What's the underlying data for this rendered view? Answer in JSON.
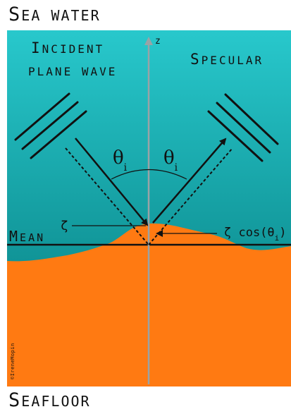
{
  "top_label": "Sea water",
  "bottom_label": "Seafloor",
  "incident_label_line1": "Incident",
  "incident_label_line2": "plane wave",
  "specular_label": "Specular",
  "mean_label": "Mean",
  "z_label": "z",
  "zeta_label": "ζ",
  "zeta_cos_label": "ζ cos(θ",
  "zeta_cos_subscript": "i",
  "zeta_cos_close": ")",
  "theta_symbol": "θ",
  "theta_subscript": "i",
  "credit": "©IreneMopin",
  "colors": {
    "water_top": "#28c8cc",
    "water_bottom": "#0e8f92",
    "seafloor": "#ff7a12",
    "axis": "#9aa3a6"
  }
}
